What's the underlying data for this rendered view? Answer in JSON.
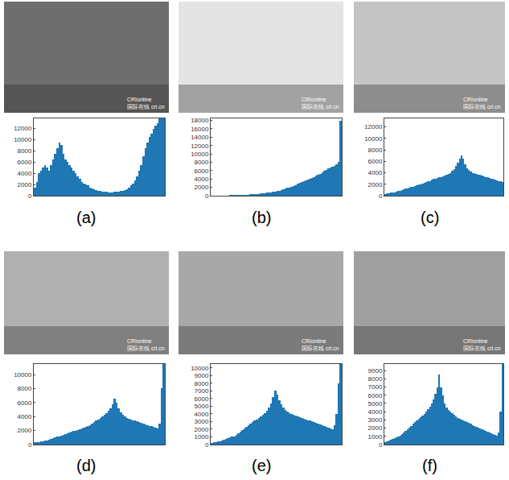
{
  "chart_data": [
    {
      "type": "histogram",
      "label": "(a)",
      "annotations": [
        "CRIonline",
        "国际在线 cri.cn"
      ],
      "bins": [
        0,
        4,
        8,
        12,
        16,
        20,
        24,
        28,
        32,
        36,
        40,
        44,
        48,
        52,
        56,
        60,
        64,
        68,
        72,
        76,
        80,
        84,
        88,
        92,
        96,
        100,
        104,
        108,
        112,
        116,
        120,
        124,
        128,
        132,
        136,
        140,
        144,
        148,
        152,
        156,
        160,
        164,
        168,
        172,
        176,
        180,
        184,
        188,
        192,
        196,
        200,
        204,
        208,
        212,
        216,
        220,
        224,
        228,
        232,
        236,
        240,
        244,
        248,
        252,
        256
      ],
      "values": [
        1500,
        2500,
        4000,
        4500,
        5000,
        5500,
        5000,
        4500,
        5500,
        6500,
        7500,
        8500,
        9500,
        9000,
        7500,
        6500,
        6000,
        5500,
        5000,
        4500,
        4000,
        3500,
        3000,
        2500,
        2200,
        2000,
        1800,
        1500,
        1300,
        1100,
        1000,
        900,
        800,
        700,
        700,
        650,
        600,
        600,
        600,
        650,
        700,
        700,
        800,
        900,
        1000,
        1200,
        1500,
        1800,
        2200,
        2800,
        3500,
        4500,
        5500,
        7000,
        8500,
        9500,
        10500,
        11000,
        12000,
        12500,
        13000,
        13800,
        13800,
        13800
      ],
      "color": "#1f77b4",
      "xlim": [
        0,
        256
      ],
      "ylim": [
        0,
        13800
      ],
      "yticks": [
        0,
        2000,
        4000,
        6000,
        8000,
        10000,
        12000
      ],
      "tick_labels": "y",
      "grid": false
    },
    {
      "type": "histogram",
      "label": "(b)",
      "annotations": [
        "CRIonline",
        "国际在线 cri.cn"
      ],
      "bins": [
        0,
        4,
        8,
        12,
        16,
        20,
        24,
        28,
        32,
        36,
        40,
        44,
        48,
        52,
        56,
        60,
        64,
        68,
        72,
        76,
        80,
        84,
        88,
        92,
        96,
        100,
        104,
        108,
        112,
        116,
        120,
        124,
        128,
        132,
        136,
        140,
        144,
        148,
        152,
        156,
        160,
        164,
        168,
        172,
        176,
        180,
        184,
        188,
        192,
        196,
        200,
        204,
        208,
        212,
        216,
        220,
        224,
        228,
        232,
        236,
        240,
        244,
        248,
        252,
        256
      ],
      "values": [
        50,
        50,
        50,
        50,
        60,
        60,
        70,
        80,
        90,
        100,
        110,
        120,
        130,
        150,
        170,
        190,
        210,
        240,
        270,
        300,
        340,
        380,
        420,
        470,
        520,
        580,
        640,
        700,
        780,
        860,
        950,
        1050,
        1150,
        1250,
        1400,
        1550,
        1700,
        1850,
        2000,
        2200,
        2400,
        2600,
        2800,
        3000,
        3200,
        3400,
        3600,
        3800,
        4000,
        4200,
        4500,
        4800,
        5000,
        5300,
        5600,
        5900,
        6200,
        6500,
        6800,
        7000,
        7200,
        7500,
        8000,
        18000
      ],
      "color": "#1f77b4",
      "xlim": [
        0,
        256
      ],
      "ylim": [
        0,
        18500
      ],
      "yticks": [
        0,
        2000,
        4000,
        6000,
        8000,
        10000,
        12000,
        14000,
        16000,
        18000
      ],
      "tick_labels": "y",
      "grid": false
    },
    {
      "type": "histogram",
      "label": "(c)",
      "annotations": [
        "CRIonline",
        "国际在线 cri.cn"
      ],
      "bins": [
        0,
        4,
        8,
        12,
        16,
        20,
        24,
        28,
        32,
        36,
        40,
        44,
        48,
        52,
        56,
        60,
        64,
        68,
        72,
        76,
        80,
        84,
        88,
        92,
        96,
        100,
        104,
        108,
        112,
        116,
        120,
        124,
        128,
        132,
        136,
        140,
        144,
        148,
        152,
        156,
        160,
        164,
        168,
        172,
        176,
        180,
        184,
        188,
        192,
        196,
        200,
        204,
        208,
        212,
        216,
        220,
        224,
        228,
        232,
        236,
        240,
        244,
        248,
        252,
        256
      ],
      "values": [
        300,
        400,
        400,
        500,
        500,
        600,
        700,
        800,
        900,
        1000,
        1100,
        1200,
        1300,
        1400,
        1500,
        1600,
        1700,
        1800,
        1900,
        2000,
        2100,
        2200,
        2400,
        2500,
        2600,
        2800,
        2900,
        3000,
        3100,
        3200,
        3300,
        3400,
        3500,
        3600,
        3800,
        4000,
        4300,
        4700,
        5200,
        5800,
        6500,
        7000,
        6500,
        5500,
        4800,
        4500,
        4200,
        4000,
        3900,
        3800,
        3700,
        3600,
        3500,
        3400,
        3300,
        3200,
        3100,
        3000,
        2900,
        2800,
        2700,
        2600,
        2500,
        2400
      ],
      "color": "#1f77b4",
      "xlim": [
        0,
        256
      ],
      "ylim": [
        0,
        13500
      ],
      "yticks": [
        0,
        2000,
        4000,
        6000,
        8000,
        10000,
        12000
      ],
      "tick_labels": "y",
      "grid": false
    },
    {
      "type": "histogram",
      "label": "(d)",
      "annotations": [
        "CRIonline",
        "国际在线 cri.cn"
      ],
      "bins": [
        0,
        4,
        8,
        12,
        16,
        20,
        24,
        28,
        32,
        36,
        40,
        44,
        48,
        52,
        56,
        60,
        64,
        68,
        72,
        76,
        80,
        84,
        88,
        92,
        96,
        100,
        104,
        108,
        112,
        116,
        120,
        124,
        128,
        132,
        136,
        140,
        144,
        148,
        152,
        156,
        160,
        164,
        168,
        172,
        176,
        180,
        184,
        188,
        192,
        196,
        200,
        204,
        208,
        212,
        216,
        220,
        224,
        228,
        232,
        236,
        240,
        244,
        248,
        252,
        256
      ],
      "values": [
        300,
        350,
        400,
        450,
        500,
        550,
        600,
        700,
        800,
        900,
        1000,
        1100,
        1200,
        1300,
        1400,
        1500,
        1600,
        1700,
        1800,
        1900,
        2000,
        2100,
        2200,
        2300,
        2400,
        2500,
        2600,
        2800,
        3000,
        3200,
        3400,
        3600,
        3800,
        4000,
        4200,
        4500,
        4800,
        5200,
        5800,
        6500,
        6000,
        5200,
        4600,
        4200,
        4000,
        3800,
        3700,
        3600,
        3500,
        3400,
        3300,
        3200,
        3100,
        3000,
        2900,
        2800,
        2700,
        2600,
        2500,
        2400,
        2300,
        3000,
        8000,
        11500
      ],
      "color": "#1f77b4",
      "xlim": [
        0,
        256
      ],
      "ylim": [
        0,
        11500
      ],
      "yticks": [
        0,
        2000,
        4000,
        6000,
        8000,
        10000
      ],
      "tick_labels": "y",
      "grid": false
    },
    {
      "type": "histogram",
      "label": "(e)",
      "annotations": [
        "CRIonline",
        "国际在线 cri.cn"
      ],
      "bins": [
        0,
        4,
        8,
        12,
        16,
        20,
        24,
        28,
        32,
        36,
        40,
        44,
        48,
        52,
        56,
        60,
        64,
        68,
        72,
        76,
        80,
        84,
        88,
        92,
        96,
        100,
        104,
        108,
        112,
        116,
        120,
        124,
        128,
        132,
        136,
        140,
        144,
        148,
        152,
        156,
        160,
        164,
        168,
        172,
        176,
        180,
        184,
        188,
        192,
        196,
        200,
        204,
        208,
        212,
        216,
        220,
        224,
        228,
        232,
        236,
        240,
        244,
        248,
        252,
        256
      ],
      "values": [
        200,
        300,
        350,
        400,
        450,
        500,
        600,
        700,
        800,
        900,
        1000,
        1100,
        1300,
        1500,
        1700,
        1900,
        2100,
        2300,
        2500,
        2700,
        2900,
        3100,
        3300,
        3500,
        3700,
        3900,
        4100,
        4400,
        4800,
        5400,
        6200,
        7000,
        6500,
        5800,
        5200,
        4800,
        4500,
        4300,
        4100,
        4000,
        3900,
        3800,
        3700,
        3600,
        3500,
        3400,
        3300,
        3200,
        3100,
        3000,
        2900,
        2800,
        2700,
        2600,
        2500,
        2400,
        2300,
        2200,
        2100,
        2000,
        2500,
        4000,
        8000,
        10500
      ],
      "color": "#1f77b4",
      "xlim": [
        0,
        256
      ],
      "ylim": [
        0,
        10500
      ],
      "yticks": [
        0,
        1000,
        2000,
        3000,
        4000,
        5000,
        6000,
        7000,
        8000,
        9000,
        10000
      ],
      "tick_labels": "y",
      "grid": false
    },
    {
      "type": "histogram",
      "label": "(f)",
      "annotations": [
        "CRIonline",
        "国际在线 cri.cn"
      ],
      "bins": [
        0,
        4,
        8,
        12,
        16,
        20,
        24,
        28,
        32,
        36,
        40,
        44,
        48,
        52,
        56,
        60,
        64,
        68,
        72,
        76,
        80,
        84,
        88,
        92,
        96,
        100,
        104,
        108,
        112,
        116,
        120,
        124,
        128,
        132,
        136,
        140,
        144,
        148,
        152,
        156,
        160,
        164,
        168,
        172,
        176,
        180,
        184,
        188,
        192,
        196,
        200,
        204,
        208,
        212,
        216,
        220,
        224,
        228,
        232,
        236,
        240,
        244,
        248,
        252,
        256
      ],
      "values": [
        300,
        400,
        500,
        600,
        700,
        800,
        900,
        1000,
        1100,
        1300,
        1500,
        1700,
        1900,
        2100,
        2300,
        2500,
        2700,
        2900,
        3100,
        3300,
        3500,
        3700,
        4000,
        4300,
        4600,
        5000,
        5500,
        6200,
        7000,
        8500,
        7000,
        6000,
        5000,
        4500,
        4200,
        4000,
        3800,
        3600,
        3400,
        3200,
        3100,
        3000,
        2900,
        2800,
        2700,
        2600,
        2500,
        2400,
        2300,
        2200,
        2100,
        2000,
        1900,
        1800,
        1700,
        1600,
        1500,
        1400,
        1300,
        1200,
        1100,
        1500,
        4000,
        9800
      ],
      "color": "#1f77b4",
      "xlim": [
        0,
        256
      ],
      "ylim": [
        0,
        9800
      ],
      "yticks": [
        0,
        1000,
        2000,
        3000,
        4000,
        5000,
        6000,
        7000,
        8000,
        9000
      ],
      "tick_labels": "y",
      "grid": false
    }
  ]
}
